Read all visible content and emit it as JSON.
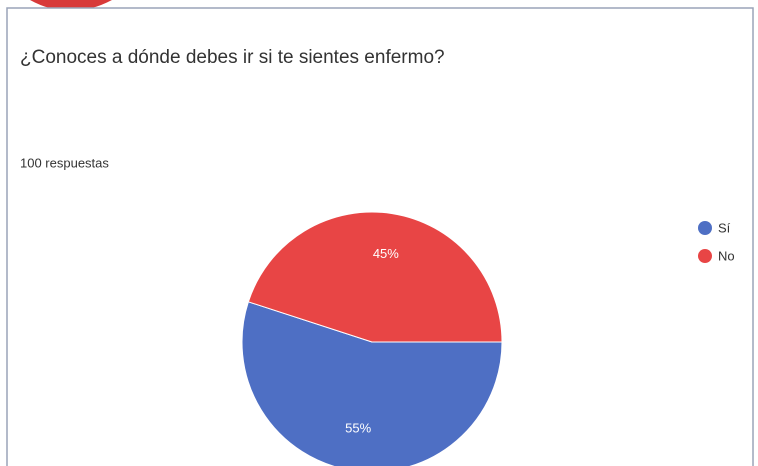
{
  "chart_data": {
    "type": "pie",
    "title": "¿Conoces a dónde debes ir si te sientes enfermo?",
    "subtitle": "100 respuestas",
    "categories": [
      "Sí",
      "No"
    ],
    "values": [
      55,
      45
    ],
    "value_labels": [
      "55%",
      "45%"
    ],
    "colors": [
      "#4e6fc4",
      "#e84545"
    ],
    "legend": "right"
  }
}
